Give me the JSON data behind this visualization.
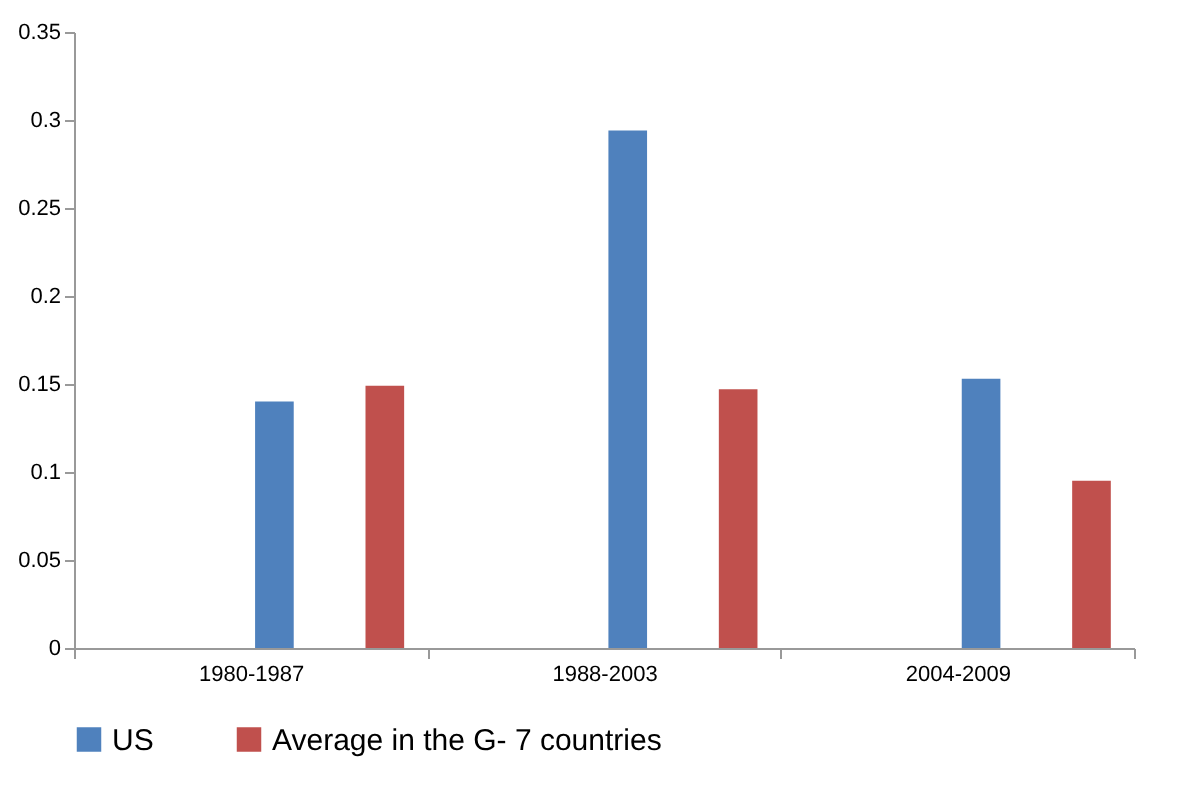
{
  "chart_data": {
    "type": "bar",
    "categories": [
      "1980-1987",
      "1988-2003",
      "2004-2009"
    ],
    "series": [
      {
        "name": "US",
        "color": "#4f81bd",
        "values": [
          0.14,
          0.294,
          0.153
        ]
      },
      {
        "name": "Average in the G- 7 countries",
        "color": "#c0504d",
        "values": [
          0.149,
          0.147,
          0.095
        ]
      }
    ],
    "ylim": [
      0,
      0.35
    ],
    "yticks": [
      0,
      0.05,
      0.1,
      0.15,
      0.2,
      0.25,
      0.3,
      0.35
    ],
    "grid": false,
    "legend": "bottom"
  }
}
